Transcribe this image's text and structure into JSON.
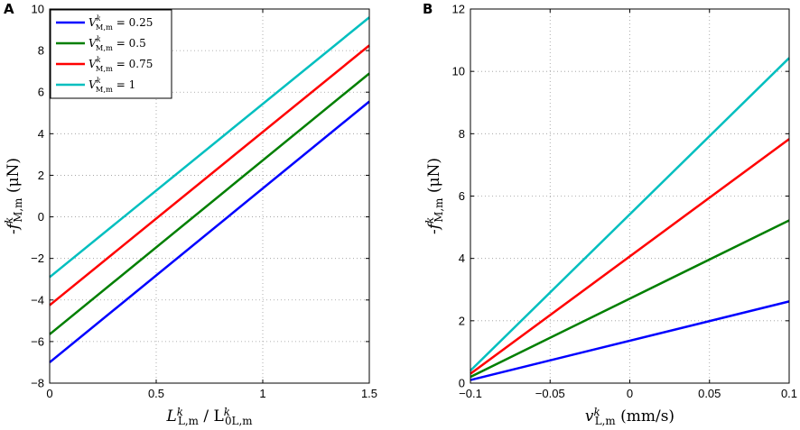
{
  "chart_data": [
    {
      "panel": "A",
      "type": "line",
      "title": "",
      "xlabel": "L^k_{L,m} / L^k_{0L,m}",
      "ylabel": "-f^k_{M,m} (μN)",
      "xlim": [
        0,
        1.5
      ],
      "ylim": [
        -8,
        10
      ],
      "xticks": [
        0,
        0.5,
        1,
        1.5
      ],
      "yticks": [
        -8,
        -6,
        -4,
        -2,
        0,
        2,
        4,
        6,
        8,
        10
      ],
      "grid": true,
      "legend_position": "top-left",
      "series": [
        {
          "name": "V^k_{M,m} = 0.25",
          "color": "#0000ff",
          "x": [
            0,
            1.5
          ],
          "y": [
            -7.0,
            5.55
          ]
        },
        {
          "name": "V^k_{M,m} = 0.5",
          "color": "#007f00",
          "x": [
            0,
            1.5
          ],
          "y": [
            -5.65,
            6.9
          ]
        },
        {
          "name": "V^k_{M,m} = 0.75",
          "color": "#ff0000",
          "x": [
            0,
            1.5
          ],
          "y": [
            -4.25,
            8.25
          ]
        },
        {
          "name": "V^k_{M,m} = 1",
          "color": "#00bfbf",
          "x": [
            0,
            1.5
          ],
          "y": [
            -2.9,
            9.6
          ]
        }
      ]
    },
    {
      "panel": "B",
      "type": "line",
      "title": "",
      "xlabel": "v^k_{L,m} (mm/s)",
      "ylabel": "-f^k_{M,m} (μN)",
      "xlim": [
        -0.1,
        0.1
      ],
      "ylim": [
        0,
        12
      ],
      "xticks": [
        -0.1,
        -0.05,
        0,
        0.05,
        0.1
      ],
      "yticks": [
        0,
        2,
        4,
        6,
        8,
        10,
        12
      ],
      "grid": true,
      "legend_position": "none",
      "series": [
        {
          "name": "V^k_{M,m} = 0.25",
          "color": "#0000ff",
          "x": [
            -0.1,
            0.1
          ],
          "y": [
            0.1,
            2.62
          ]
        },
        {
          "name": "V^k_{M,m} = 0.5",
          "color": "#007f00",
          "x": [
            -0.1,
            0.1
          ],
          "y": [
            0.2,
            5.22
          ]
        },
        {
          "name": "V^k_{M,m} = 0.75",
          "color": "#ff0000",
          "x": [
            -0.1,
            0.1
          ],
          "y": [
            0.3,
            7.83
          ]
        },
        {
          "name": "V^k_{M,m} = 1",
          "color": "#00bfbf",
          "x": [
            -0.1,
            0.1
          ],
          "y": [
            0.4,
            10.43
          ]
        }
      ]
    }
  ]
}
